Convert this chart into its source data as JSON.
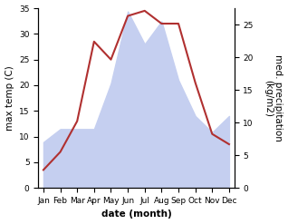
{
  "months": [
    "Jan",
    "Feb",
    "Mar",
    "Apr",
    "May",
    "Jun",
    "Jul",
    "Aug",
    "Sep",
    "Oct",
    "Nov",
    "Dec"
  ],
  "temperature": [
    3.5,
    7.0,
    13.0,
    28.5,
    25.0,
    33.5,
    34.5,
    32.0,
    32.0,
    20.5,
    10.5,
    8.5
  ],
  "precipitation": [
    7.0,
    9.0,
    9.0,
    9.0,
    16.0,
    27.0,
    22.0,
    25.5,
    16.5,
    11.0,
    8.5,
    11.0
  ],
  "temp_color": "#b03030",
  "precip_fill_color": "#c5cff0",
  "ylabel_left": "max temp (C)",
  "ylabel_right": "med. precipitation\n(kg/m2)",
  "xlabel": "date (month)",
  "ylim_left": [
    0,
    35
  ],
  "ylim_right": [
    0,
    27.5
  ],
  "yticks_left": [
    0,
    5,
    10,
    15,
    20,
    25,
    30,
    35
  ],
  "yticks_right": [
    0,
    5,
    10,
    15,
    20,
    25
  ],
  "bg_color": "#ffffff",
  "label_fontsize": 7.5,
  "tick_fontsize": 6.5
}
